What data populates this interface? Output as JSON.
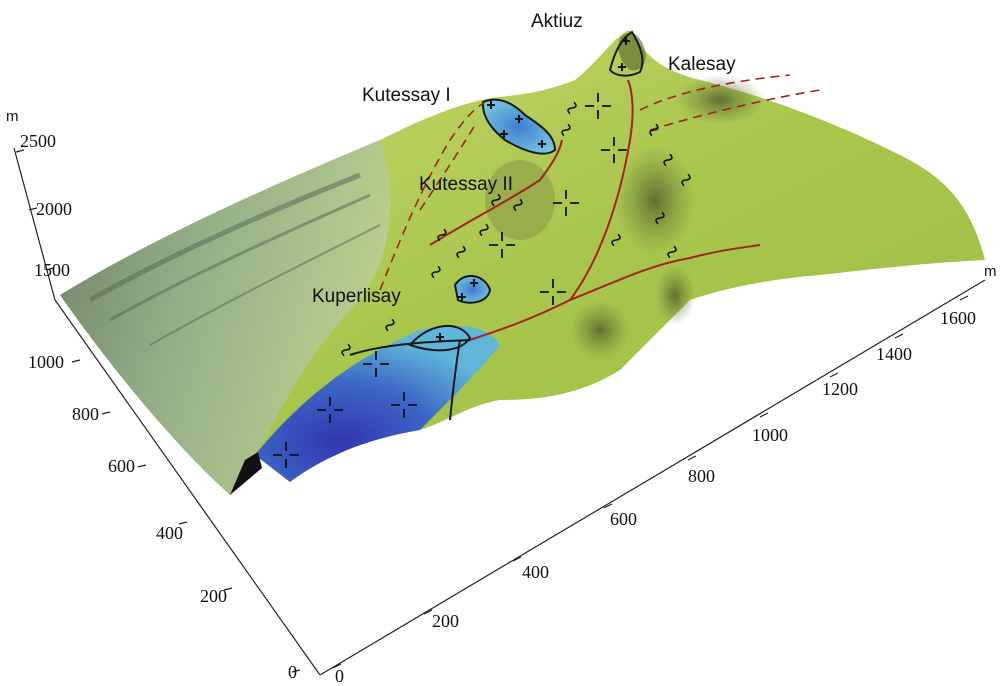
{
  "map": {
    "places": [
      {
        "name": "Aktiuz"
      },
      {
        "name": "Kalesay"
      },
      {
        "name": "Kutessay I"
      },
      {
        "name": "Kutessay II"
      },
      {
        "name": "Kuperlisay"
      }
    ]
  },
  "axes": {
    "z": {
      "unit": "m",
      "ticks": [
        "2500",
        "2000",
        "1500"
      ]
    },
    "y": {
      "ticks": [
        "1000",
        "800",
        "600",
        "400",
        "200",
        "0"
      ]
    },
    "x": {
      "unit": "m",
      "ticks": [
        "0",
        "200",
        "400",
        "600",
        "800",
        "1000",
        "1200",
        "1400",
        "1600"
      ]
    }
  },
  "colors": {
    "terrain_green": "#a8c94a",
    "terrain_light": "#c9df7a",
    "terrain_gray": "#7f9a7a",
    "lake_blue": "#3f63c8",
    "deep_blue": "#3b3fb3",
    "fault_red": "#a0241f",
    "contour_black": "#1a1a1a"
  }
}
